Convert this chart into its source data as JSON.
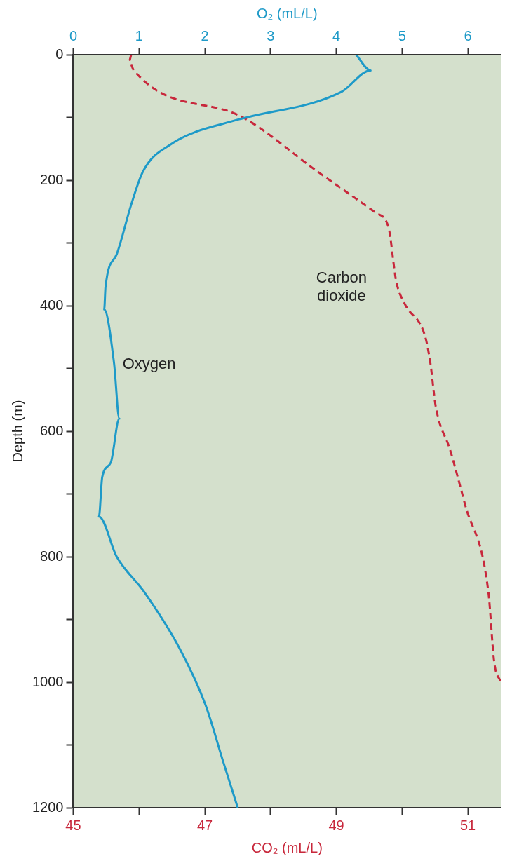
{
  "chart_data": {
    "type": "line",
    "xlabel": "CO₂ (mL/L)",
    "x2label": "O₂ (mL/L)",
    "ylabel": "Depth (m)",
    "xlim": [
      45,
      51.5
    ],
    "xticks": [
      45,
      {
        "value": 46,
        "label": null
      },
      47,
      {
        "value": 48,
        "label": null
      },
      49,
      {
        "value": 50,
        "label": null
      },
      51
    ],
    "x2lim": [
      0,
      6.5
    ],
    "x2ticks": [
      0,
      1,
      2,
      3,
      4,
      5,
      6
    ],
    "ylim": [
      1200,
      0
    ],
    "yticks": [
      0,
      {
        "value": 100,
        "label": null
      },
      200,
      {
        "value": 300,
        "label": null
      },
      400,
      {
        "value": 500,
        "label": null
      },
      600,
      {
        "value": 700,
        "label": null
      },
      800,
      {
        "value": 900,
        "label": null
      },
      1000,
      {
        "value": 1100,
        "label": null
      },
      1200
    ],
    "legend": false,
    "series": [
      {
        "name": "Oxygen",
        "color": "#1e9ac8",
        "axis": "x2",
        "line_style": "solid",
        "x": [
          4.3,
          4.52,
          4.08,
          2.64,
          2.52,
          1.48,
          1.06,
          0.88,
          0.66,
          0.49,
          0.47,
          0.62,
          0.7,
          0.57,
          0.44,
          0.39,
          0.66,
          1.07,
          1.61,
          2.01,
          2.28,
          2.5
        ],
        "values": [
          0,
          25,
          59,
          100,
          103,
          143,
          186,
          239,
          318,
          370,
          406,
          492,
          580,
          650,
          673,
          736,
          800,
          855,
          945,
          1036,
          1127,
          1200
        ]
      },
      {
        "name": "Carbon dioxide",
        "color": "#c8283c",
        "line_style": "dashed",
        "x": [
          45.88,
          45.85,
          45.92,
          47.58,
          48.71,
          49.6,
          49.79,
          49.91,
          50.04,
          50.35,
          50.43,
          50.51,
          50.73,
          50.96,
          51.31,
          51.4,
          51.5
        ],
        "values": [
          0,
          10,
          25,
          100,
          186,
          252,
          274,
          361,
          397,
          449,
          492,
          560,
          630,
          718,
          855,
          968,
          1000
        ]
      }
    ]
  }
}
